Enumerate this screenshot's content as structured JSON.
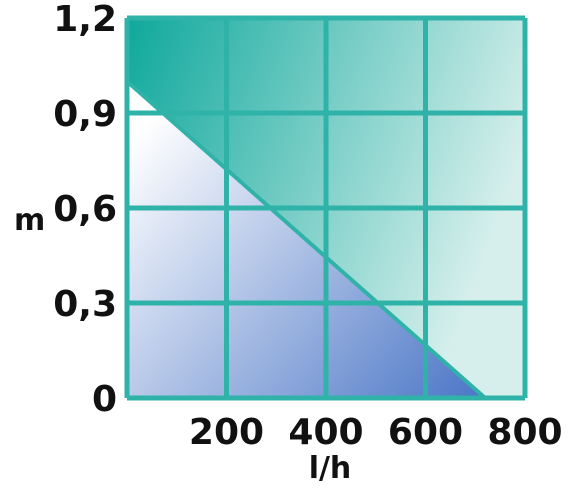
{
  "chart_data": {
    "type": "area",
    "xlabel": "l/h",
    "ylabel": "m",
    "xlim": [
      0,
      800
    ],
    "ylim": [
      0,
      1.2
    ],
    "x_ticks": [
      {
        "value": 200,
        "label": "200"
      },
      {
        "value": 400,
        "label": "400"
      },
      {
        "value": 600,
        "label": "600"
      },
      {
        "value": 800,
        "label": "800"
      }
    ],
    "y_ticks": [
      {
        "value": 0,
        "label": "0"
      },
      {
        "value": 0.3,
        "label": "0,3"
      },
      {
        "value": 0.6,
        "label": "0,6"
      },
      {
        "value": 0.9,
        "label": "0,9"
      },
      {
        "value": 1.2,
        "label": "1,2"
      }
    ],
    "grid": true,
    "series": [
      {
        "x": [
          0,
          720
        ],
        "y": [
          1.0,
          0
        ]
      }
    ],
    "colors": {
      "grid": "#2fb3a8",
      "above_curve_dark": "#0fa89c",
      "above_curve_light": "#d6efec",
      "below_curve_light": "#ffffff",
      "below_curve_dark": "#4a75c6"
    }
  }
}
